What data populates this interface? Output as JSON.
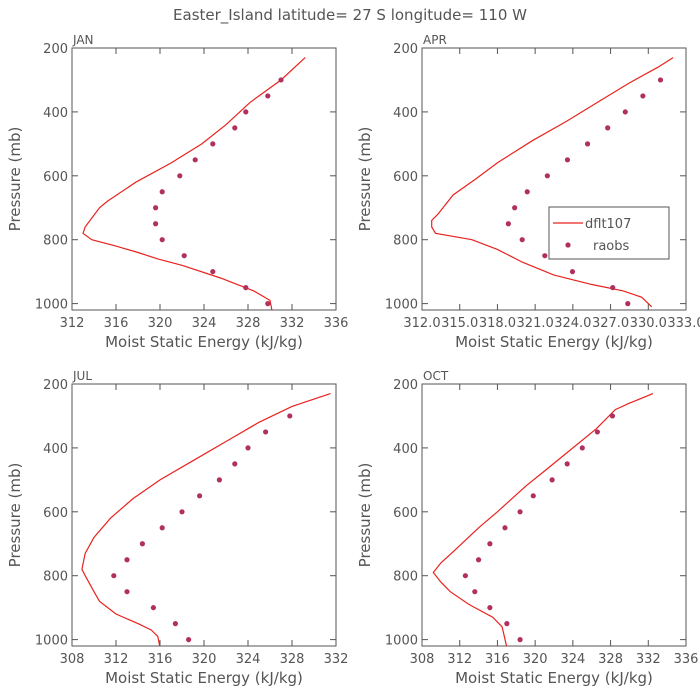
{
  "title": "Easter_Island  latitude= 27 S longitude= 110 W",
  "colors": {
    "model": "#e8231e",
    "obs": "#b03060",
    "axis": "#555555"
  },
  "chart_data": [
    {
      "type": "line",
      "label": "JAN",
      "xlabel": "Moist Static Energy (kJ/kg)",
      "ylabel": "Pressure (mb)",
      "xlim": [
        312,
        336
      ],
      "ylim": [
        1020,
        200
      ],
      "xticks": [
        312,
        316,
        320,
        324,
        328,
        332,
        336
      ],
      "xtick_labels": [
        "312",
        "316",
        "320",
        "324",
        "328",
        "332",
        "336"
      ],
      "yticks": [
        200,
        400,
        600,
        800,
        1000
      ],
      "ytick_labels": [
        "200",
        "400",
        "600",
        "800",
        "1000"
      ],
      "series": [
        {
          "name": "dflt107",
          "kind": "line",
          "x": [
            333.2,
            331.0,
            328.2,
            326.0,
            323.8,
            321.0,
            317.8,
            315.2,
            314.5,
            313.2,
            313.0,
            313.8,
            316.0,
            318.0,
            319.8,
            322.0,
            325.5,
            328.5,
            330.0,
            330.2
          ],
          "y": [
            230,
            300,
            370,
            440,
            500,
            560,
            620,
            680,
            700,
            760,
            780,
            800,
            820,
            840,
            860,
            880,
            920,
            960,
            990,
            1025
          ]
        },
        {
          "name": "raobs",
          "kind": "points",
          "x": [
            331.0,
            329.8,
            327.8,
            326.8,
            324.8,
            323.2,
            321.8,
            320.2,
            319.6,
            319.6,
            320.2,
            322.2,
            324.8,
            327.8,
            329.8
          ],
          "y": [
            300,
            350,
            400,
            450,
            500,
            550,
            600,
            650,
            700,
            750,
            800,
            850,
            900,
            950,
            1000
          ]
        }
      ]
    },
    {
      "type": "line",
      "label": "APR",
      "xlabel": "Moist Static Energy (kJ/kg)",
      "ylabel": "Pressure (mb)",
      "xlim": [
        312.03,
        333.03
      ],
      "ylim": [
        1020,
        200
      ],
      "xticks": [
        312.03,
        315.03,
        318.03,
        321.03,
        324.03,
        327.03,
        330.03,
        333.03
      ],
      "xtick_labels": [
        "312.0",
        "315.0",
        "318.0",
        "321.0",
        "324.0",
        "327.0",
        "330.0",
        "333.0"
      ],
      "yticks": [
        200,
        400,
        600,
        800,
        1000
      ],
      "ytick_labels": [
        "200",
        "400",
        "600",
        "800",
        "1000"
      ],
      "series": [
        {
          "name": "dflt107",
          "kind": "line",
          "x": [
            332.0,
            330.8,
            328.5,
            326.0,
            323.5,
            320.8,
            318.0,
            316.3,
            314.5,
            313.3,
            312.8,
            312.8,
            313.1,
            316.0,
            318.0,
            320.0,
            322.5,
            325.5,
            328.0,
            329.5,
            330.3
          ],
          "y": [
            230,
            260,
            310,
            370,
            430,
            490,
            560,
            610,
            660,
            720,
            740,
            760,
            780,
            800,
            830,
            870,
            910,
            940,
            960,
            980,
            1010
          ]
        },
        {
          "name": "raobs",
          "kind": "points",
          "x": [
            331.0,
            329.6,
            328.2,
            326.8,
            325.2,
            323.6,
            322.0,
            320.4,
            319.4,
            318.9,
            320.0,
            321.8,
            324.0,
            327.2,
            328.4
          ],
          "y": [
            300,
            350,
            400,
            450,
            500,
            550,
            600,
            650,
            700,
            750,
            800,
            850,
            900,
            950,
            1000
          ]
        }
      ],
      "legend": {
        "position": "inside-right",
        "entries": [
          "dflt107",
          "raobs"
        ]
      }
    },
    {
      "type": "line",
      "label": "JUL",
      "xlabel": "Moist Static Energy (kJ/kg)",
      "ylabel": "Pressure (mb)",
      "xlim": [
        308,
        332
      ],
      "ylim": [
        1020,
        200
      ],
      "xticks": [
        308,
        312,
        316,
        320,
        324,
        328,
        332
      ],
      "xtick_labels": [
        "308",
        "312",
        "316",
        "320",
        "324",
        "328",
        "332"
      ],
      "yticks": [
        200,
        400,
        600,
        800,
        1000
      ],
      "ytick_labels": [
        "200",
        "400",
        "600",
        "800",
        "1000"
      ],
      "series": [
        {
          "name": "dflt107",
          "kind": "line",
          "x": [
            331.5,
            328.0,
            325.0,
            322.0,
            319.0,
            316.0,
            313.5,
            311.5,
            310.0,
            309.2,
            308.9,
            309.2,
            310.0,
            310.5,
            312.0,
            314.0,
            315.2,
            315.8,
            316.0
          ],
          "y": [
            230,
            270,
            320,
            380,
            440,
            500,
            560,
            620,
            680,
            730,
            780,
            800,
            850,
            880,
            920,
            950,
            970,
            990,
            1025
          ]
        },
        {
          "name": "raobs",
          "kind": "points",
          "x": [
            327.8,
            325.6,
            324.0,
            322.8,
            321.4,
            319.6,
            318.0,
            316.2,
            314.4,
            313.0,
            311.8,
            313.0,
            315.4,
            317.4,
            318.6
          ],
          "y": [
            300,
            350,
            400,
            450,
            500,
            550,
            600,
            650,
            700,
            750,
            800,
            850,
            900,
            950,
            1000
          ]
        }
      ]
    },
    {
      "type": "line",
      "label": "OCT",
      "xlabel": "Moist Static Energy (kJ/kg)",
      "ylabel": "Pressure (mb)",
      "xlim": [
        308,
        336
      ],
      "ylim": [
        1020,
        200
      ],
      "xticks": [
        308,
        312,
        316,
        320,
        324,
        328,
        332,
        336
      ],
      "xtick_labels": [
        "308",
        "312",
        "316",
        "320",
        "324",
        "328",
        "332",
        "336"
      ],
      "yticks": [
        200,
        400,
        600,
        800,
        1000
      ],
      "ytick_labels": [
        "200",
        "400",
        "600",
        "800",
        "1000"
      ],
      "series": [
        {
          "name": "dflt107",
          "kind": "line",
          "x": [
            332.5,
            330.0,
            328.5,
            326.5,
            324.0,
            321.5,
            319.0,
            316.0,
            314.0,
            311.5,
            310.0,
            309.2,
            310.0,
            311.0,
            313.0,
            315.5,
            316.5,
            317.0
          ],
          "y": [
            230,
            260,
            280,
            340,
            400,
            460,
            520,
            600,
            650,
            720,
            760,
            790,
            820,
            850,
            890,
            930,
            960,
            1025
          ]
        },
        {
          "name": "raobs",
          "kind": "points",
          "x": [
            328.2,
            326.6,
            325.0,
            323.4,
            321.8,
            319.8,
            318.4,
            316.8,
            315.2,
            314.0,
            312.6,
            313.6,
            315.2,
            317.0,
            318.4
          ],
          "y": [
            300,
            350,
            400,
            450,
            500,
            550,
            600,
            650,
            700,
            750,
            800,
            850,
            900,
            950,
            1000
          ]
        }
      ]
    }
  ]
}
